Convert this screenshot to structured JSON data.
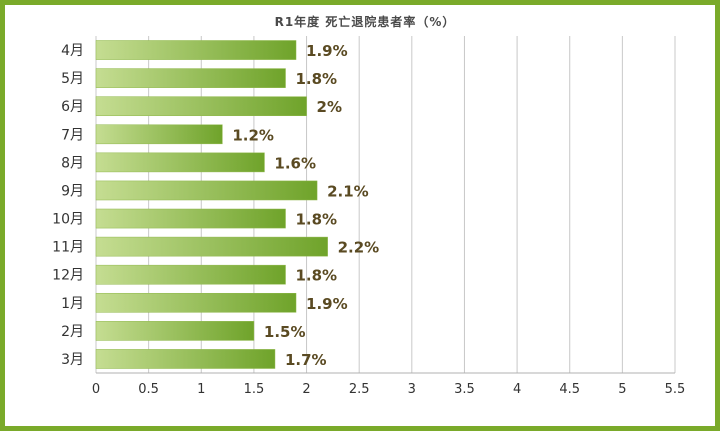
{
  "chart_data": {
    "type": "bar",
    "orientation": "horizontal",
    "title": "R1年度 死亡退院患者率（%）",
    "categories": [
      "4月",
      "5月",
      "6月",
      "7月",
      "8月",
      "9月",
      "10月",
      "11月",
      "12月",
      "1月",
      "2月",
      "3月"
    ],
    "values": [
      1.9,
      1.8,
      2,
      1.2,
      1.6,
      2.1,
      1.8,
      2.2,
      1.8,
      1.9,
      1.5,
      1.7
    ],
    "data_labels": [
      "1.9%",
      "1.8%",
      "2%",
      "1.2%",
      "1.6%",
      "2.1%",
      "1.8%",
      "2.2%",
      "1.8%",
      "1.9%",
      "1.5%",
      "1.7%"
    ],
    "xlim": [
      0,
      5.5
    ],
    "xticks": [
      "0",
      "0.5",
      "1",
      "1.5",
      "2",
      "2.5",
      "3",
      "3.5",
      "4",
      "4.5",
      "5",
      "5.5"
    ],
    "xlabel": "",
    "ylabel": "",
    "grid": "vertical",
    "legend": "none",
    "colors": {
      "bar_light": "#c5dd92",
      "bar_dark": "#6fa32a",
      "frame": "#7aaa2a",
      "grid": "#c8c8c8",
      "data_label": "#5a4a22"
    }
  }
}
